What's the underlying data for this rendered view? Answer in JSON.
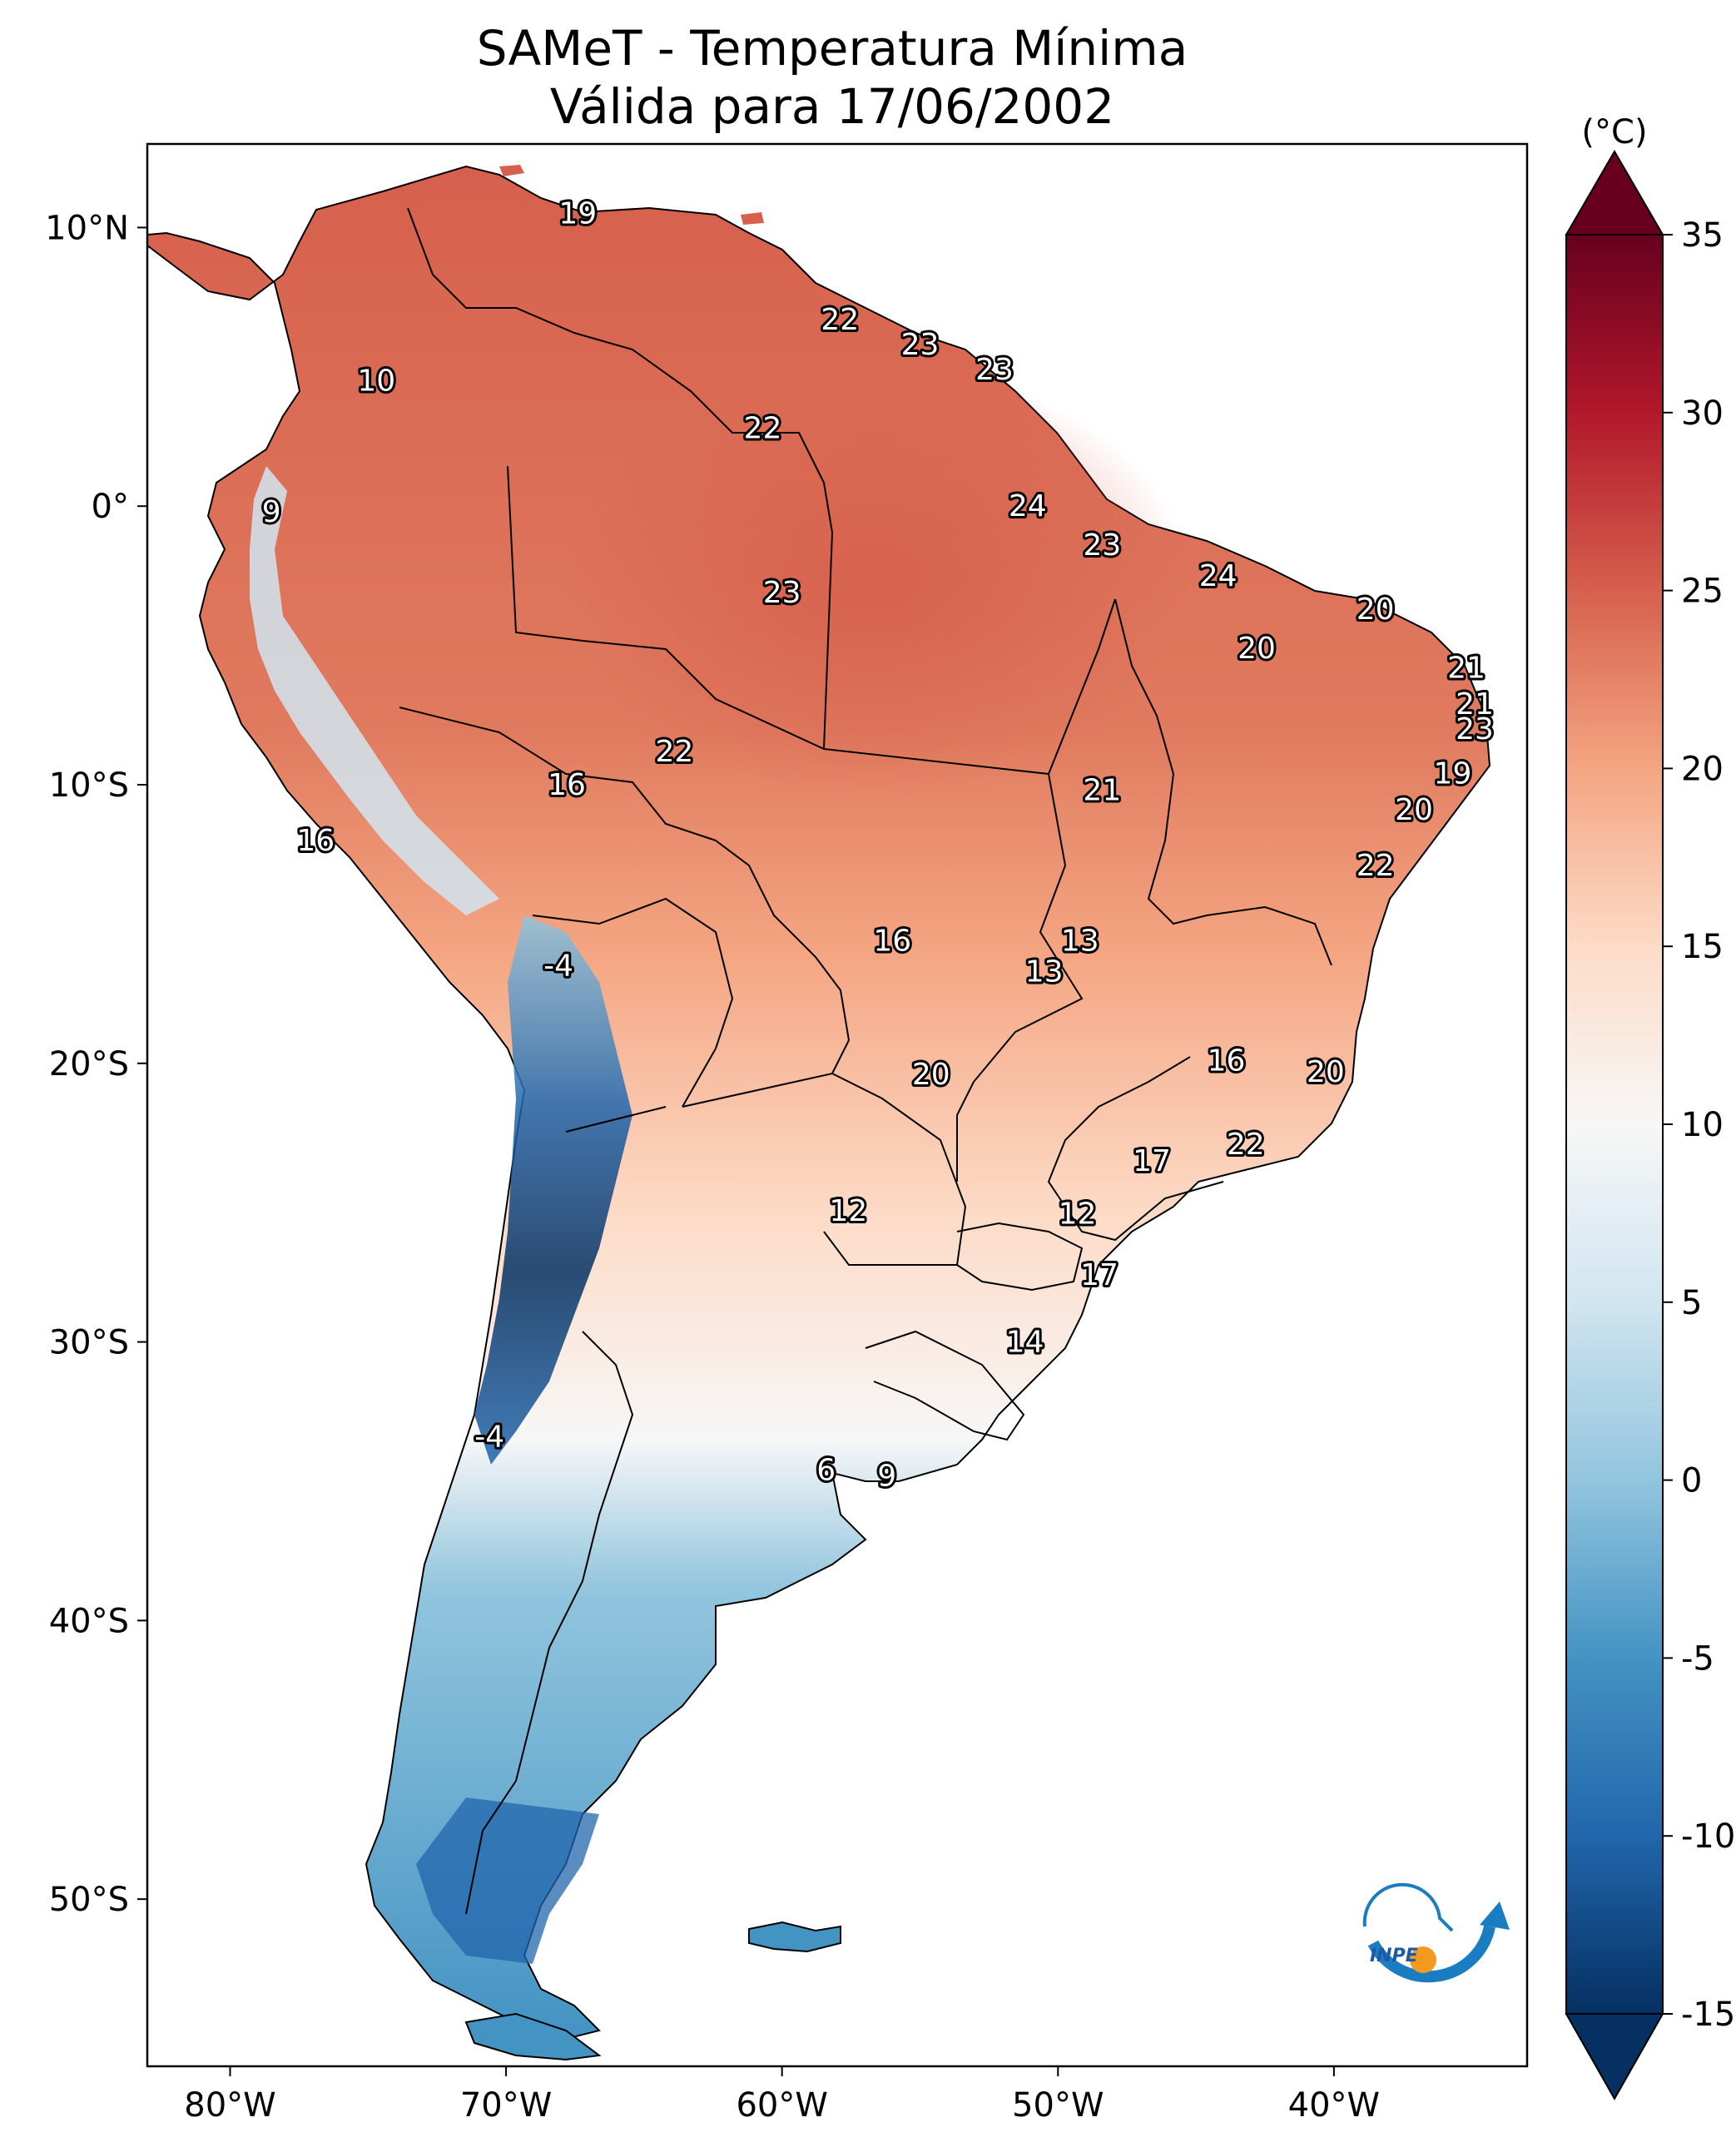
{
  "title": {
    "line1": "SAMeT - Temperatura Mínima",
    "line2": "Válida para 17/06/2002"
  },
  "map": {
    "lon_range": [
      -83,
      -33
    ],
    "lat_range": [
      -56,
      13
    ],
    "lat_ticks": [
      {
        "lat": 10,
        "label": "10°N"
      },
      {
        "lat": 0,
        "label": "0°"
      },
      {
        "lat": -10,
        "label": "10°S"
      },
      {
        "lat": -20,
        "label": "20°S"
      },
      {
        "lat": -30,
        "label": "30°S"
      },
      {
        "lat": -40,
        "label": "40°S"
      },
      {
        "lat": -50,
        "label": "50°S"
      }
    ],
    "lon_ticks": [
      {
        "lon": -80,
        "label": "80°W"
      },
      {
        "lon": -70,
        "label": "70°W"
      },
      {
        "lon": -60,
        "label": "60°W"
      },
      {
        "lon": -50,
        "label": "50°W"
      },
      {
        "lon": -40,
        "label": "40°W"
      }
    ],
    "stations": [
      {
        "lon": -67.4,
        "lat": 10.5,
        "value": "19"
      },
      {
        "lon": -74.7,
        "lat": 4.5,
        "value": "10"
      },
      {
        "lon": -57.9,
        "lat": 6.7,
        "value": "22"
      },
      {
        "lon": -55.0,
        "lat": 5.8,
        "value": "23"
      },
      {
        "lon": -52.3,
        "lat": 4.9,
        "value": "23"
      },
      {
        "lon": -60.7,
        "lat": 2.8,
        "value": "22"
      },
      {
        "lon": -78.5,
        "lat": -0.2,
        "value": "9"
      },
      {
        "lon": -51.1,
        "lat": 0.0,
        "value": "24"
      },
      {
        "lon": -48.4,
        "lat": -1.4,
        "value": "23"
      },
      {
        "lon": -44.2,
        "lat": -2.5,
        "value": "24"
      },
      {
        "lon": -38.5,
        "lat": -3.7,
        "value": "20"
      },
      {
        "lon": -60.0,
        "lat": -3.1,
        "value": "23"
      },
      {
        "lon": -42.8,
        "lat": -5.1,
        "value": "20"
      },
      {
        "lon": -35.2,
        "lat": -5.8,
        "value": "21"
      },
      {
        "lon": -34.9,
        "lat": -7.1,
        "value": "21"
      },
      {
        "lon": -34.9,
        "lat": -8.0,
        "value": "23"
      },
      {
        "lon": -63.9,
        "lat": -8.8,
        "value": "22"
      },
      {
        "lon": -67.8,
        "lat": -10.0,
        "value": "16"
      },
      {
        "lon": -35.7,
        "lat": -9.6,
        "value": "19"
      },
      {
        "lon": -48.4,
        "lat": -10.2,
        "value": "21"
      },
      {
        "lon": -37.1,
        "lat": -10.9,
        "value": "20"
      },
      {
        "lon": -76.9,
        "lat": -12.0,
        "value": "16"
      },
      {
        "lon": -38.5,
        "lat": -12.9,
        "value": "22"
      },
      {
        "lon": -56.0,
        "lat": -15.6,
        "value": "16"
      },
      {
        "lon": -49.2,
        "lat": -15.6,
        "value": "13"
      },
      {
        "lon": -50.5,
        "lat": -16.7,
        "value": "13"
      },
      {
        "lon": -68.1,
        "lat": -16.5,
        "value": "-4"
      },
      {
        "lon": -43.9,
        "lat": -19.9,
        "value": "16"
      },
      {
        "lon": -40.3,
        "lat": -20.3,
        "value": "20"
      },
      {
        "lon": -54.6,
        "lat": -20.4,
        "value": "20"
      },
      {
        "lon": -43.2,
        "lat": -22.9,
        "value": "22"
      },
      {
        "lon": -46.6,
        "lat": -23.5,
        "value": "17"
      },
      {
        "lon": -57.6,
        "lat": -25.3,
        "value": "12"
      },
      {
        "lon": -49.3,
        "lat": -25.4,
        "value": "12"
      },
      {
        "lon": -48.5,
        "lat": -27.6,
        "value": "17"
      },
      {
        "lon": -51.2,
        "lat": -30.0,
        "value": "14"
      },
      {
        "lon": -70.6,
        "lat": -33.4,
        "value": "-4"
      },
      {
        "lon": -58.4,
        "lat": -34.6,
        "value": "6"
      },
      {
        "lon": -56.2,
        "lat": -34.8,
        "value": "9"
      }
    ]
  },
  "colorbar": {
    "unit_label": "(°C)",
    "vmin": -15,
    "vmax": 35,
    "ticks": [
      {
        "value": 35,
        "label": "35"
      },
      {
        "value": 30,
        "label": "30"
      },
      {
        "value": 25,
        "label": "25"
      },
      {
        "value": 20,
        "label": "20"
      },
      {
        "value": 15,
        "label": "15"
      },
      {
        "value": 10,
        "label": "10"
      },
      {
        "value": 5,
        "label": "5"
      },
      {
        "value": 0,
        "label": "0"
      },
      {
        "value": -5,
        "label": "-5"
      },
      {
        "value": -10,
        "label": "-10"
      },
      {
        "value": -15,
        "label": "-15"
      }
    ],
    "colors": [
      "#053061",
      "#2166ac",
      "#4393c3",
      "#92c5de",
      "#d1e5f0",
      "#f7f7f7",
      "#fddbc7",
      "#f4a582",
      "#d6604d",
      "#b2182b",
      "#67001f"
    ]
  },
  "logo": {
    "text": "INPE",
    "colors": {
      "arc": "#1a7cc1",
      "dot": "#f29a1f"
    }
  }
}
